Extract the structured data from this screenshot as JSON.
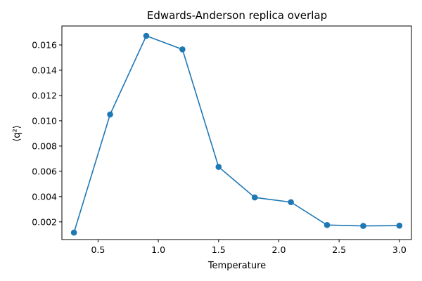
{
  "chart_data": {
    "type": "line",
    "title": "Edwards-Anderson replica overlap",
    "xlabel": "Temperature",
    "ylabel": "⟨q²⟩",
    "x": [
      0.3,
      0.6,
      0.9,
      1.2,
      1.5,
      1.8,
      2.1,
      2.4,
      2.7,
      3.0
    ],
    "series": [
      {
        "values": [
          0.00115,
          0.0105,
          0.01672,
          0.01565,
          0.00635,
          0.00393,
          0.00356,
          0.00175,
          0.00168,
          0.0017
        ]
      }
    ],
    "xlim": [
      0.2,
      3.1
    ],
    "ylim": [
      0.0006,
      0.0175
    ],
    "xticks": [
      0.5,
      1.0,
      1.5,
      2.0,
      2.5,
      3.0
    ],
    "xtick_labels": [
      "0.5",
      "1.0",
      "1.5",
      "2.0",
      "2.5",
      "3.0"
    ],
    "yticks": [
      0.002,
      0.004,
      0.006,
      0.008,
      0.01,
      0.012,
      0.014,
      0.016
    ],
    "ytick_labels": [
      "0.002",
      "0.004",
      "0.006",
      "0.008",
      "0.010",
      "0.012",
      "0.014",
      "0.016"
    ],
    "grid": false,
    "color": "#1f77b4"
  }
}
